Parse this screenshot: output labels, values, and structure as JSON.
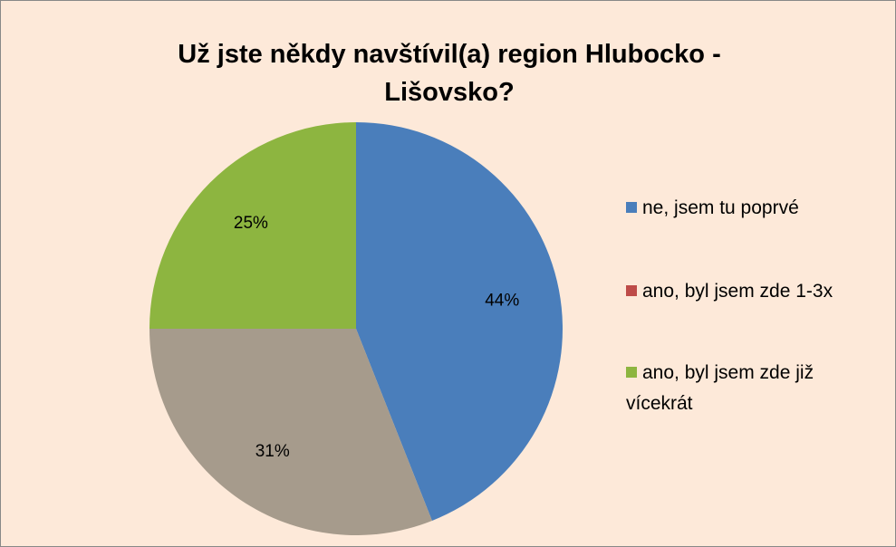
{
  "chart_data": {
    "type": "pie",
    "title": "Už jste někdy navštívil(a) region Hlubocko - Lišovsko?",
    "categories": [
      "ne, jsem tu poprvé",
      "ano, byl jsem zde 1-3x",
      "ano, byl jsem zde již vícekrát"
    ],
    "values": [
      44,
      31,
      25
    ],
    "value_labels": [
      "44%",
      "31%",
      "25%"
    ],
    "colors": [
      "#4a7ebb",
      "#a69b8c",
      "#8db540"
    ],
    "legend_colors": [
      "#4a7ebb",
      "#be4b48",
      "#8db540"
    ],
    "legend": "right"
  }
}
